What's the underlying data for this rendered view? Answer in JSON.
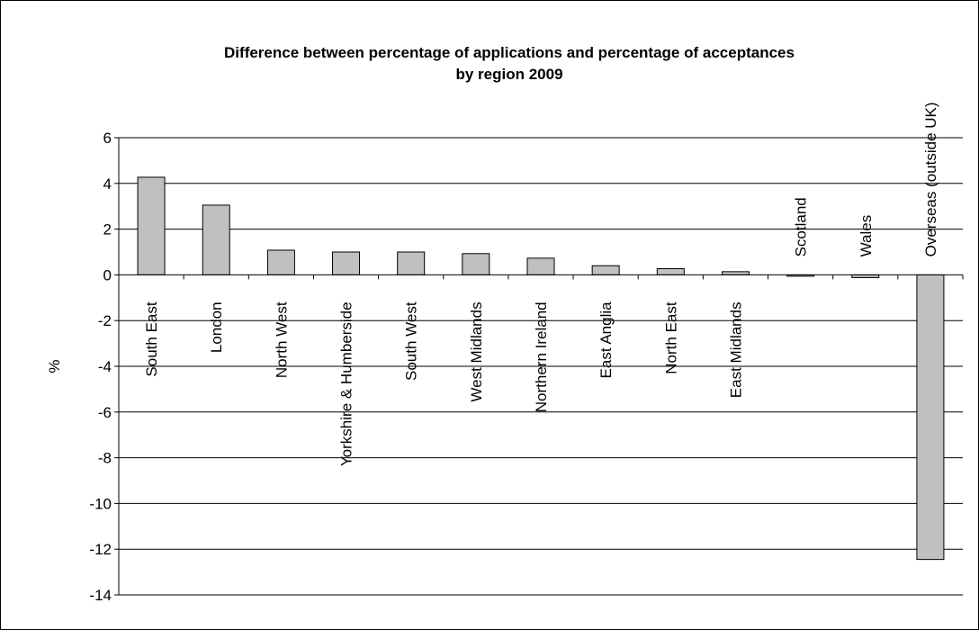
{
  "chart_data": {
    "type": "bar",
    "title_lines": [
      "Difference between percentage of applications and percentage of acceptances",
      "by region 2009"
    ],
    "xlabel": "",
    "ylabel": "%",
    "ylim": [
      -14,
      6
    ],
    "ytick_step": 2,
    "y_ticks": [
      "6",
      "4",
      "2",
      "0",
      "-2",
      "-4",
      "-6",
      "-8",
      "-10",
      "-12",
      "-14"
    ],
    "grid": true,
    "legend": "none",
    "bar_color": "#c0c0c0",
    "categories": [
      "South East",
      "London",
      "North West",
      "Yorkshire & Humberside",
      "South West",
      "West Midlands",
      "Northern Ireland",
      "East Anglia",
      "North East",
      "East Midlands",
      "Scotland",
      "Wales",
      "Overseas (outside UK)"
    ],
    "values": [
      4.27,
      3.05,
      1.08,
      1.0,
      1.0,
      0.93,
      0.73,
      0.4,
      0.27,
      0.14,
      -0.06,
      -0.12,
      -12.45
    ]
  }
}
